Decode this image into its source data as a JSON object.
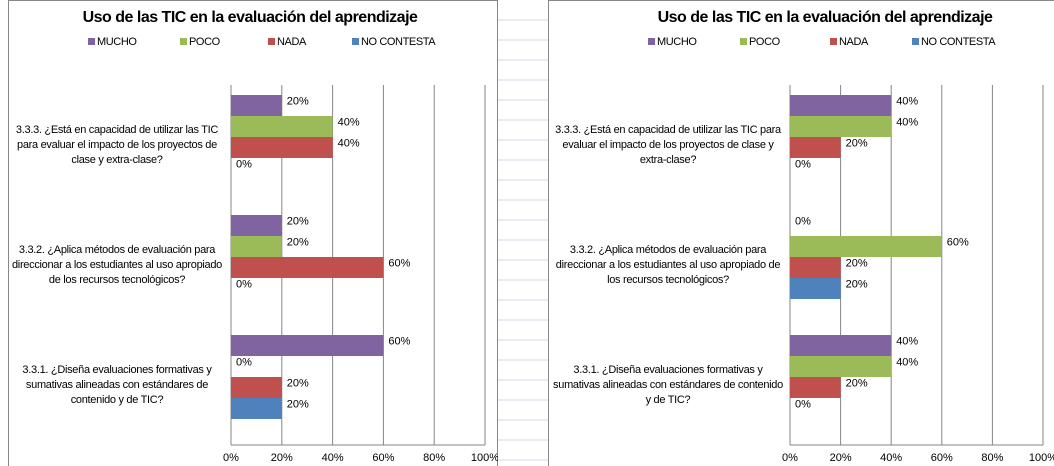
{
  "chart_data": [
    {
      "type": "bar",
      "orientation": "horizontal",
      "title": "Uso de las TIC en la evaluación del aprendizaje",
      "categories": [
        "3.3.3. ¿Está en capacidad de utilizar las TIC para evaluar el impacto de los proyectos de clase y extra-clase?",
        "3.3.2. ¿Aplica métodos de evaluación para direccionar a los estudiantes al uso apropiado de los recursos tecnológicos?",
        "3.3.1. ¿Diseña evaluaciones formativas y sumativas alineadas con estándares de contenido y de TIC?"
      ],
      "series": [
        {
          "name": "MUCHO",
          "color": "#8064a2",
          "values": [
            20,
            20,
            60
          ],
          "value_labels": [
            "20%",
            "20%",
            "60%"
          ]
        },
        {
          "name": "POCO",
          "color": "#9bbb59",
          "values": [
            40,
            20,
            0
          ],
          "value_labels": [
            "40%",
            "20%",
            "0%"
          ]
        },
        {
          "name": "NADA",
          "color": "#c0504d",
          "values": [
            40,
            60,
            20
          ],
          "value_labels": [
            "40%",
            "60%",
            "20%"
          ]
        },
        {
          "name": "NO CONTESTA",
          "color": "#4f81bd",
          "values": [
            0,
            0,
            20
          ],
          "value_labels": [
            "0%",
            "0%",
            "20%"
          ]
        }
      ],
      "xlim": [
        0,
        100
      ],
      "xticks": [
        {
          "value": 0,
          "label": "0%"
        },
        {
          "value": 20,
          "label": "20%"
        },
        {
          "value": 40,
          "label": "40%"
        },
        {
          "value": 60,
          "label": "60%"
        },
        {
          "value": 80,
          "label": "80%"
        },
        {
          "value": 100,
          "label": "100%"
        }
      ],
      "grid": true,
      "legend": "top"
    },
    {
      "type": "bar",
      "orientation": "horizontal",
      "title": "Uso de las TIC en la evaluación del aprendizaje",
      "categories": [
        "3.3.3. ¿Está en capacidad de utilizar las TIC para evaluar el impacto de los proyectos de clase y extra-clase?",
        "3.3.2. ¿Aplica métodos de evaluación para direccionar a los estudiantes al uso apropiado de los recursos tecnológicos?",
        "3.3.1. ¿Diseña evaluaciones formativas y sumativas alineadas con estándares de contenido y de TIC?"
      ],
      "series": [
        {
          "name": "MUCHO",
          "color": "#8064a2",
          "values": [
            40,
            0,
            40
          ],
          "value_labels": [
            "40%",
            "0%",
            "40%"
          ]
        },
        {
          "name": "POCO",
          "color": "#9bbb59",
          "values": [
            40,
            60,
            40
          ],
          "value_labels": [
            "40%",
            "60%",
            "40%"
          ]
        },
        {
          "name": "NADA",
          "color": "#c0504d",
          "values": [
            20,
            20,
            20
          ],
          "value_labels": [
            "20%",
            "20%",
            "20%"
          ]
        },
        {
          "name": "NO CONTESTA",
          "color": "#4f81bd",
          "values": [
            0,
            20,
            0
          ],
          "value_labels": [
            "0%",
            "20%",
            "0%"
          ]
        }
      ],
      "xlim": [
        0,
        100
      ],
      "xticks": [
        {
          "value": 0,
          "label": "0%"
        },
        {
          "value": 20,
          "label": "20%"
        },
        {
          "value": 40,
          "label": "40%"
        },
        {
          "value": 60,
          "label": "60%"
        },
        {
          "value": 80,
          "label": "80%"
        },
        {
          "value": 100,
          "label": "100%"
        }
      ],
      "grid": true,
      "legend": "top"
    }
  ]
}
